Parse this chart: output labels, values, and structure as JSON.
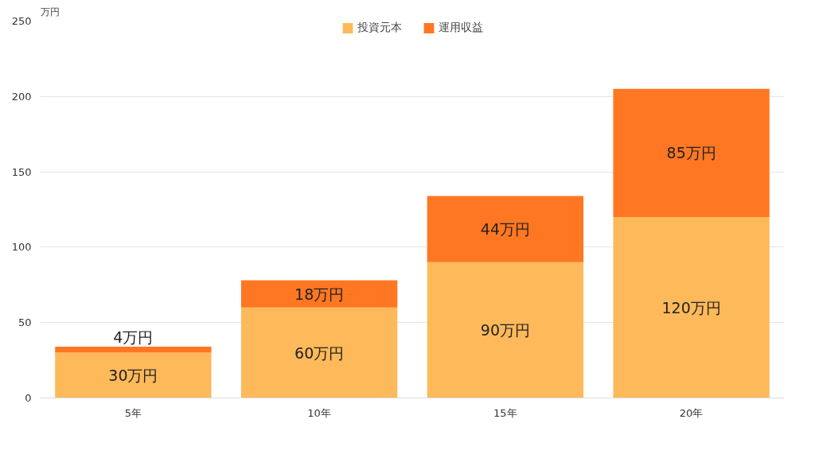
{
  "chart_data": {
    "type": "bar",
    "stacked": true,
    "ylabel": "万円",
    "categories": [
      "5年",
      "10年",
      "15年",
      "20年"
    ],
    "series": [
      {
        "name": "投資元本",
        "color": "#fdb95a",
        "values": [
          30,
          60,
          90,
          120
        ],
        "value_labels": [
          "30万円",
          "60万円",
          "90万円",
          "120万円"
        ]
      },
      {
        "name": "運用収益",
        "color": "#ff7722",
        "values": [
          4,
          18,
          44,
          85
        ],
        "value_labels": [
          "4万円",
          "18万円",
          "44万円",
          "85万円"
        ]
      }
    ],
    "ylim": [
      0,
      250
    ],
    "yticks": [
      0,
      50,
      100,
      150,
      200,
      250
    ],
    "grid": "y",
    "legend": "top"
  }
}
